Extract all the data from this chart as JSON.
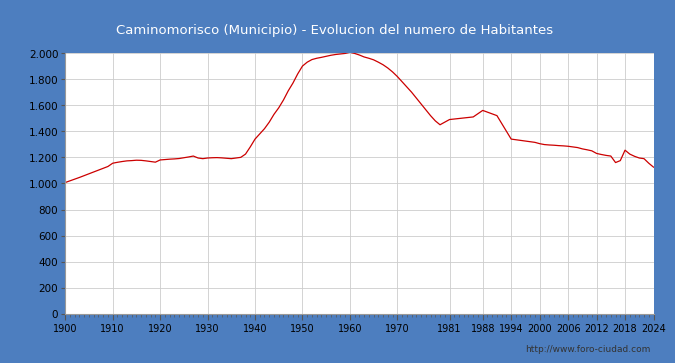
{
  "title": "Caminomorisco (Municipio) - Evolucion del numero de Habitantes",
  "title_color": "#ffffff",
  "title_bg_color": "#4d7ebf",
  "plot_bg_color": "#ffffff",
  "grid_color": "#cccccc",
  "line_color": "#cc0000",
  "url_text": "http://www.foro-ciudad.com",
  "yticks": [
    0,
    200,
    400,
    600,
    800,
    1000,
    1200,
    1400,
    1600,
    1800,
    2000
  ],
  "xtick_labels": [
    "1900",
    "1910",
    "1920",
    "1930",
    "1940",
    "1950",
    "1960",
    "1970",
    "1981",
    "1988",
    "1994",
    "2000",
    "2006",
    "2012",
    "2018",
    "2024"
  ],
  "years": [
    1900,
    1901,
    1902,
    1903,
    1904,
    1905,
    1906,
    1907,
    1908,
    1909,
    1910,
    1911,
    1912,
    1913,
    1914,
    1915,
    1916,
    1917,
    1918,
    1919,
    1920,
    1921,
    1922,
    1923,
    1924,
    1925,
    1926,
    1927,
    1928,
    1929,
    1930,
    1931,
    1932,
    1933,
    1934,
    1935,
    1936,
    1937,
    1938,
    1939,
    1940,
    1941,
    1942,
    1943,
    1944,
    1945,
    1946,
    1947,
    1948,
    1949,
    1950,
    1951,
    1952,
    1953,
    1954,
    1955,
    1956,
    1957,
    1958,
    1959,
    1960,
    1961,
    1962,
    1963,
    1964,
    1965,
    1966,
    1967,
    1968,
    1969,
    1970,
    1971,
    1972,
    1973,
    1974,
    1975,
    1976,
    1977,
    1978,
    1979,
    1981,
    1986,
    1988,
    1991,
    1994,
    1996,
    1998,
    1999,
    2000,
    2001,
    2002,
    2003,
    2004,
    2005,
    2006,
    2007,
    2008,
    2009,
    2010,
    2011,
    2012,
    2013,
    2014,
    2015,
    2016,
    2017,
    2018,
    2019,
    2020,
    2021,
    2022,
    2023,
    2024
  ],
  "population": [
    1007,
    1020,
    1033,
    1046,
    1060,
    1074,
    1088,
    1102,
    1116,
    1130,
    1155,
    1162,
    1168,
    1173,
    1175,
    1178,
    1177,
    1173,
    1168,
    1163,
    1180,
    1183,
    1186,
    1188,
    1191,
    1197,
    1203,
    1210,
    1195,
    1190,
    1195,
    1197,
    1198,
    1196,
    1193,
    1190,
    1195,
    1200,
    1225,
    1280,
    1340,
    1380,
    1420,
    1470,
    1530,
    1580,
    1640,
    1710,
    1770,
    1840,
    1900,
    1930,
    1950,
    1960,
    1967,
    1975,
    1983,
    1989,
    1993,
    1997,
    2006,
    1997,
    1985,
    1970,
    1960,
    1948,
    1930,
    1910,
    1885,
    1855,
    1820,
    1780,
    1740,
    1700,
    1655,
    1610,
    1565,
    1520,
    1480,
    1450,
    1490,
    1510,
    1560,
    1520,
    1340,
    1330,
    1320,
    1315,
    1305,
    1298,
    1295,
    1293,
    1290,
    1288,
    1285,
    1280,
    1275,
    1265,
    1258,
    1250,
    1230,
    1222,
    1215,
    1210,
    1160,
    1175,
    1255,
    1225,
    1208,
    1195,
    1190,
    1155,
    1125
  ]
}
